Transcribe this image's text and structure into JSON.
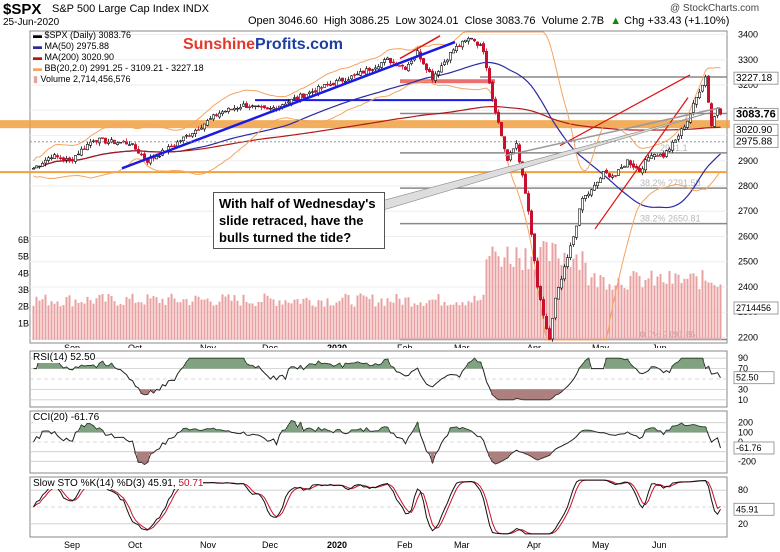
{
  "header": {
    "symbol": "$SPX",
    "description": "S&P 500 Large Cap Index",
    "exchange": "INDX",
    "date": "25-Jun-2020",
    "open_label": "Open",
    "open": "3046.60",
    "high_label": "High",
    "high": "3086.25",
    "low_label": "Low",
    "low": "3024.01",
    "close_label": "Close",
    "close": "3083.76",
    "volume_label": "Volume",
    "volume": "2.7B",
    "chg_label": "Chg",
    "chg": "+33.43 (+1.10%)",
    "chg_arrow": "▲",
    "credit": "@ StockCharts.com"
  },
  "logo": {
    "part1": "Sunshine",
    "part2": "Profits.com"
  },
  "legend": {
    "price": "$SPX (Daily) 3083.76",
    "ma50": "MA(50) 2975.88",
    "ma200": "MA(200) 3020.90",
    "bb": "BB(20,2.0) 2991.25 - 3109.21 - 3227.18",
    "volume": "Volume 2,714,456,576"
  },
  "callout": "With half of Wednesday's slide retraced, have the bulls turned the tide?",
  "colors": {
    "up": "#111111",
    "down": "#c8102e",
    "ma50": "#2a2aa0",
    "ma200": "#b01818",
    "bb": "#f4a460",
    "trend_blue": "#1a1ae6",
    "trend_red": "#e01010",
    "orange_band": "#f0a040",
    "volume": "#e8a0a0",
    "gray": "#555555",
    "fib": "#b8b8b8"
  },
  "fib_labels": [
    "38.2% 2791.58",
    "38.2% 2650.81",
    "0.0% 2191.86",
    "2931.1"
  ],
  "right_tags": [
    "3227.18",
    "3083.76",
    "3020.90",
    "2975.88"
  ],
  "price_axis": [
    "3400",
    "3300",
    "3200",
    "3100",
    "3000",
    "2900",
    "2800",
    "2700",
    "2600",
    "2500",
    "2400",
    "2300",
    "2200"
  ],
  "volume_axis": [
    "6B",
    "5B",
    "4B",
    "3B",
    "2B",
    "1B"
  ],
  "volume_tag": "2714456",
  "months": [
    "Sep",
    "Oct",
    "Nov",
    "Dec",
    "2020",
    "Feb",
    "Mar",
    "Apr",
    "May",
    "Jun"
  ],
  "rsi": {
    "label": "RSI(14) 52.50",
    "axis": [
      "90",
      "70",
      "50",
      "30",
      "10"
    ],
    "tag": "52.50"
  },
  "cci": {
    "label": "CCI(20) -61.76",
    "axis": [
      "200",
      "100",
      "0",
      "-100",
      "-200"
    ],
    "tag": "-61.76"
  },
  "sto": {
    "label": "Slow STO %K(14) %D(3) 45.91,",
    "label2": "50.71",
    "axis": [
      "80",
      "50",
      "20"
    ],
    "tag": "45.91"
  },
  "chart_data": {
    "type": "candlestick",
    "title": "$SPX S&P 500 Large Cap Index",
    "x_start": "Aug-2019",
    "x_end": "25-Jun-2020",
    "ylim": [
      2190,
      3410
    ],
    "price_keypoints": [
      {
        "label": "Aug-2019",
        "y": 2870
      },
      {
        "label": "Sep-2019",
        "y": 2960
      },
      {
        "label": "Oct-2019 low",
        "y": 2900
      },
      {
        "label": "Nov-2019",
        "y": 3090
      },
      {
        "label": "Dec-2019",
        "y": 3200
      },
      {
        "label": "Jan-2020",
        "y": 3280
      },
      {
        "label": "Feb-2020 high",
        "y": 3393
      },
      {
        "label": "Mar-2020 low",
        "y": 2191.86
      },
      {
        "label": "Apr-2020",
        "y": 2800
      },
      {
        "label": "May-2020",
        "y": 2950
      },
      {
        "label": "Jun-2020 high",
        "y": 3232
      },
      {
        "label": "25-Jun-2020 close",
        "y": 3083.76
      }
    ],
    "series": [
      {
        "name": "MA(50)",
        "last": 2975.88
      },
      {
        "name": "MA(200)",
        "last": 3020.9
      },
      {
        "name": "BB(20,2.0)",
        "lower": 2991.25,
        "mid": 3109.21,
        "upper": 3227.18
      },
      {
        "name": "Volume",
        "last": 2714456576
      }
    ],
    "indicators": [
      {
        "name": "RSI(14)",
        "last": 52.5,
        "ylim": [
          0,
          100
        ]
      },
      {
        "name": "CCI(20)",
        "last": -61.76,
        "ylim": [
          -300,
          300
        ]
      },
      {
        "name": "Slow STO %K(14) %D(3)",
        "k": 45.91,
        "d": 50.71,
        "ylim": [
          0,
          100
        ]
      }
    ]
  }
}
